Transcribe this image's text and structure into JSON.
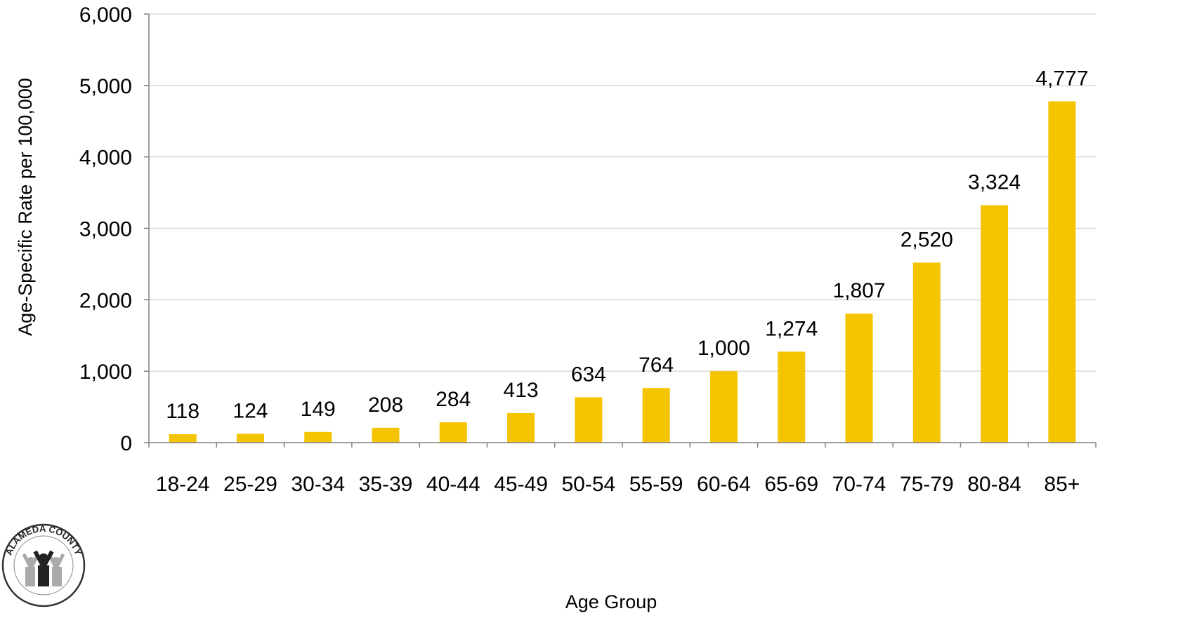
{
  "chart_data": {
    "type": "bar",
    "categories": [
      "18-24",
      "25-29",
      "30-34",
      "35-39",
      "40-44",
      "45-49",
      "50-54",
      "55-59",
      "60-64",
      "65-69",
      "70-74",
      "75-79",
      "80-84",
      "85+"
    ],
    "values": [
      118,
      124,
      149,
      208,
      284,
      413,
      634,
      764,
      1000,
      1274,
      1807,
      2520,
      3324,
      4777
    ],
    "value_labels": [
      "118",
      "124",
      "149",
      "208",
      "284",
      "413",
      "634",
      "764",
      "1,000",
      "1,274",
      "1,807",
      "2,520",
      "3,324",
      "4,777"
    ],
    "xlabel": "Age Group",
    "ylabel": "Age-Specific Rate per 100,000",
    "ylim": [
      0,
      6000
    ],
    "yticks": [
      0,
      1000,
      2000,
      3000,
      4000,
      5000,
      6000
    ],
    "ytick_labels": [
      "0",
      "1,000",
      "2,000",
      "3,000",
      "4,000",
      "5,000",
      "6,000"
    ],
    "grid": true,
    "bar_color": "#F5C400",
    "grid_color": "#D9D9D9",
    "axis_color": "#808080"
  },
  "logo": {
    "text": "ALAMEDA COUNTY",
    "icon": "people-figures-icon"
  }
}
